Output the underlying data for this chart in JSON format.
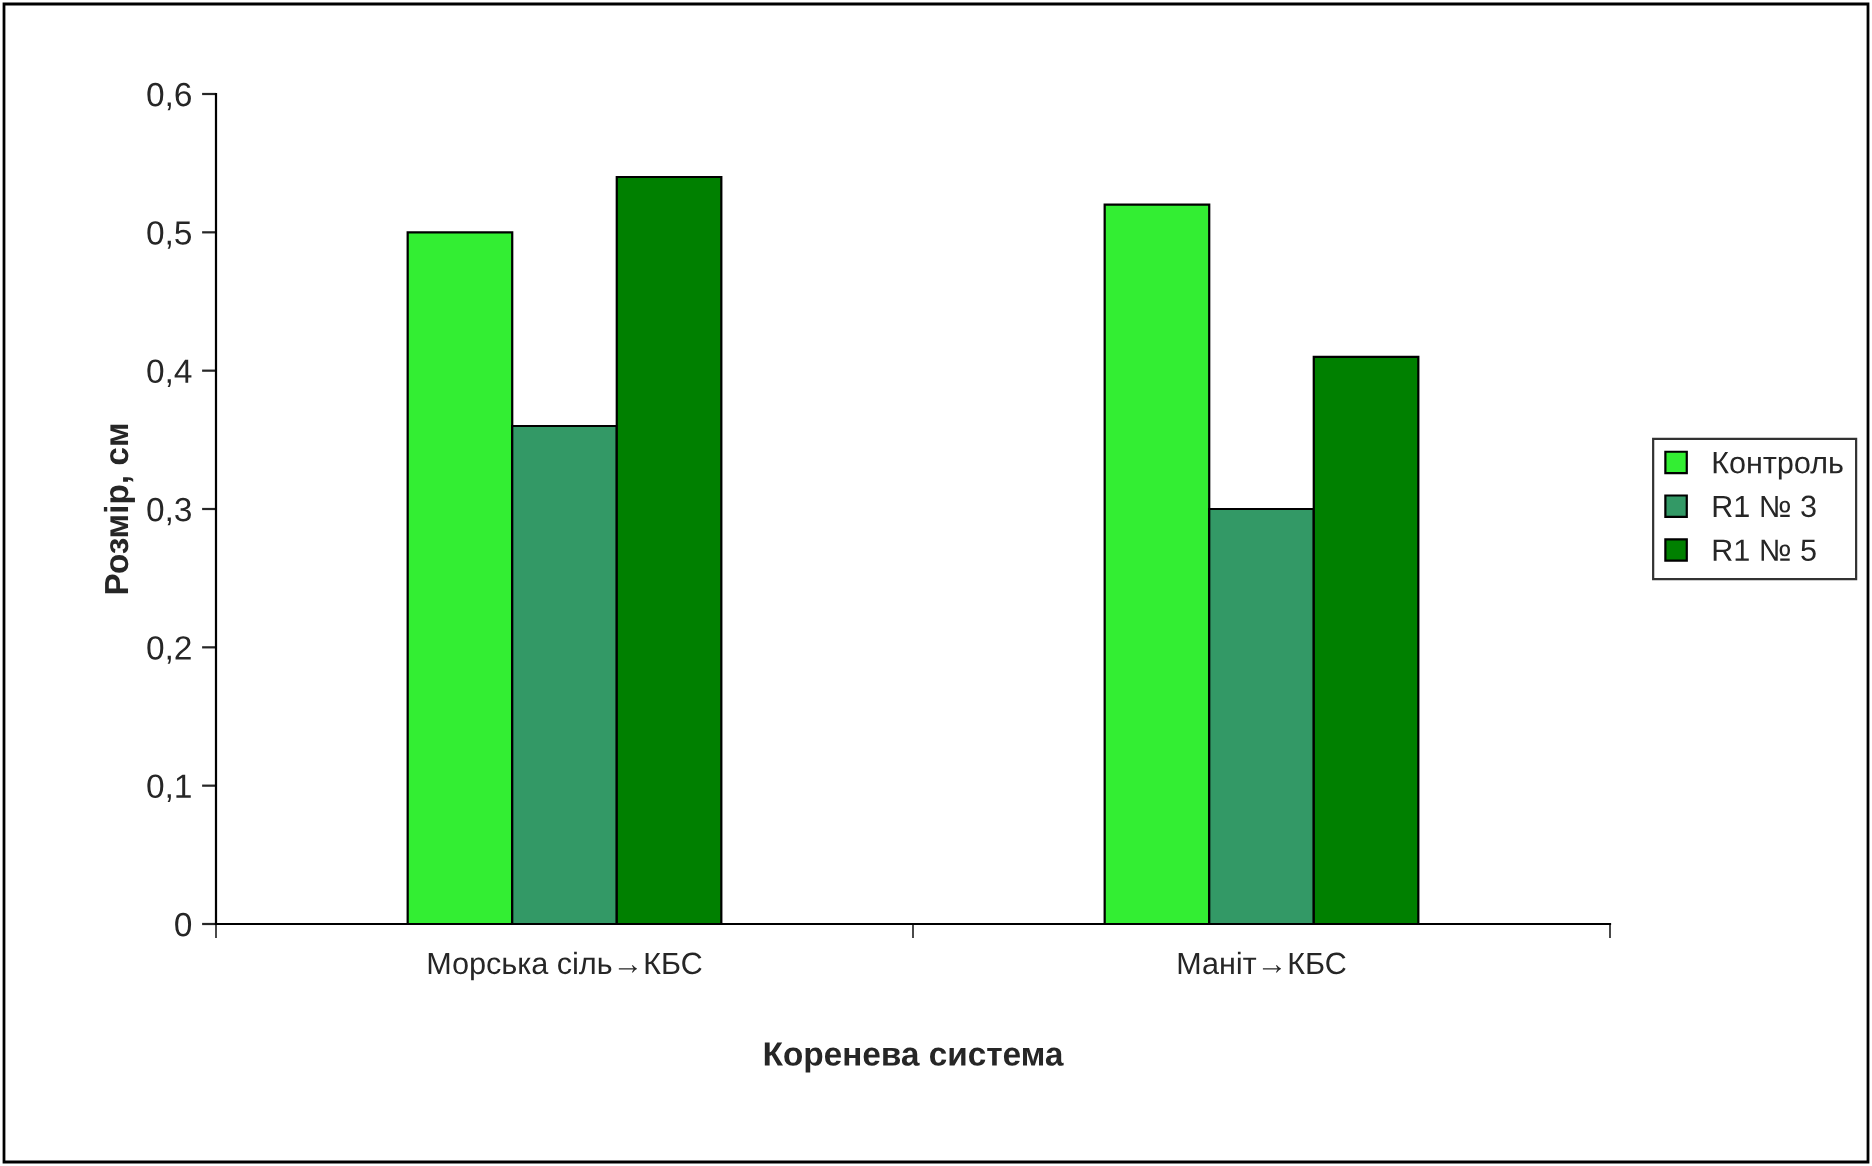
{
  "chart_data": {
    "type": "bar",
    "xlabel": "Коренева система",
    "ylabel": "Розмір, см",
    "categories": [
      "Морська сіль→КБС",
      "Маніт→КБС"
    ],
    "series": [
      {
        "name": "Контроль",
        "color": "#33ee33",
        "values": [
          0.5,
          0.52
        ]
      },
      {
        "name": "R1 № 3",
        "color": "#339966",
        "values": [
          0.36,
          0.3
        ]
      },
      {
        "name": "R1 № 5",
        "color": "#008000",
        "values": [
          0.54,
          0.41
        ]
      }
    ],
    "ylim": [
      0,
      0.6
    ],
    "yticks": [
      0,
      {
        "value": 0.1,
        "label": "0,1"
      },
      {
        "value": 0.2,
        "label": "0,2"
      },
      {
        "value": 0.3,
        "label": "0,3"
      },
      {
        "value": 0.4,
        "label": "0,4"
      },
      {
        "value": 0.5,
        "label": "0,5"
      },
      {
        "value": 0.6,
        "label": "0,6"
      }
    ],
    "grid": false,
    "legend": "right"
  }
}
